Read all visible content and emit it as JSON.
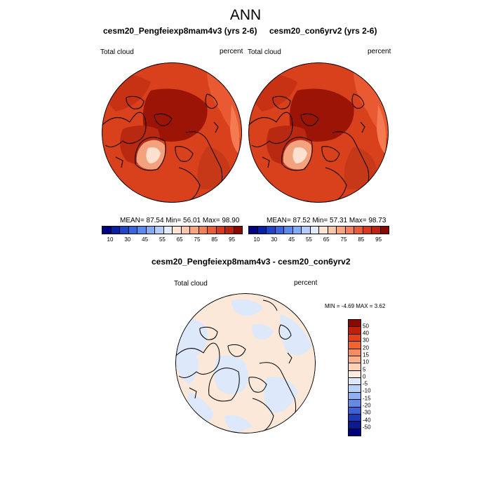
{
  "figure": {
    "title": "ANN"
  },
  "left_panel": {
    "title": "cesm20_Pengfeiexp8mam4v3 (yrs 2-6)",
    "variable": "Total cloud",
    "units": "percent",
    "stats": "MEAN=  87.54  Min=  56.01  Max=  98.90"
  },
  "right_panel": {
    "title": "cesm20_con6yrv2 (yrs 2-6)",
    "variable": "Total cloud",
    "units": "percent",
    "stats": "MEAN=  87.52  Min=  57.31  Max=  98.73"
  },
  "diff_panel": {
    "title": "cesm20_Pengfeiexp8mam4v3 - cesm20_con6yrv2",
    "variable": "Total cloud",
    "units": "percent",
    "stats": "MIN =  -4.69 MAX =   3.62"
  },
  "colorbar_levels": [
    "10",
    "30",
    "45",
    "55",
    "65",
    "75",
    "85",
    "95"
  ],
  "colorbar_colors": [
    "#00007f",
    "#0a1fa4",
    "#1f46c8",
    "#3966df",
    "#5c89ee",
    "#84a9f5",
    "#b3cdfa",
    "#e1ebff",
    "#fde4d2",
    "#fac7a8",
    "#f7a37e",
    "#f2815c",
    "#ea5b37",
    "#d93a1f",
    "#bb2410",
    "#8b0a00"
  ],
  "diff_colorbar_levels": [
    "50",
    "40",
    "30",
    "20",
    "15",
    "10",
    "5",
    "0",
    "-5",
    "-10",
    "-15",
    "-20",
    "-30",
    "-40",
    "-50"
  ],
  "diff_colorbar_colors": [
    "#8b0a00",
    "#c0200a",
    "#e44019",
    "#f2642e",
    "#f78d5e",
    "#fab08a",
    "#fcd2b6",
    "#fde9da",
    "#dde9fb",
    "#b9d0f7",
    "#8fb1f1",
    "#648ae6",
    "#3a62d6",
    "#1a3ab7",
    "#0a1a8f",
    "#00007f"
  ]
}
